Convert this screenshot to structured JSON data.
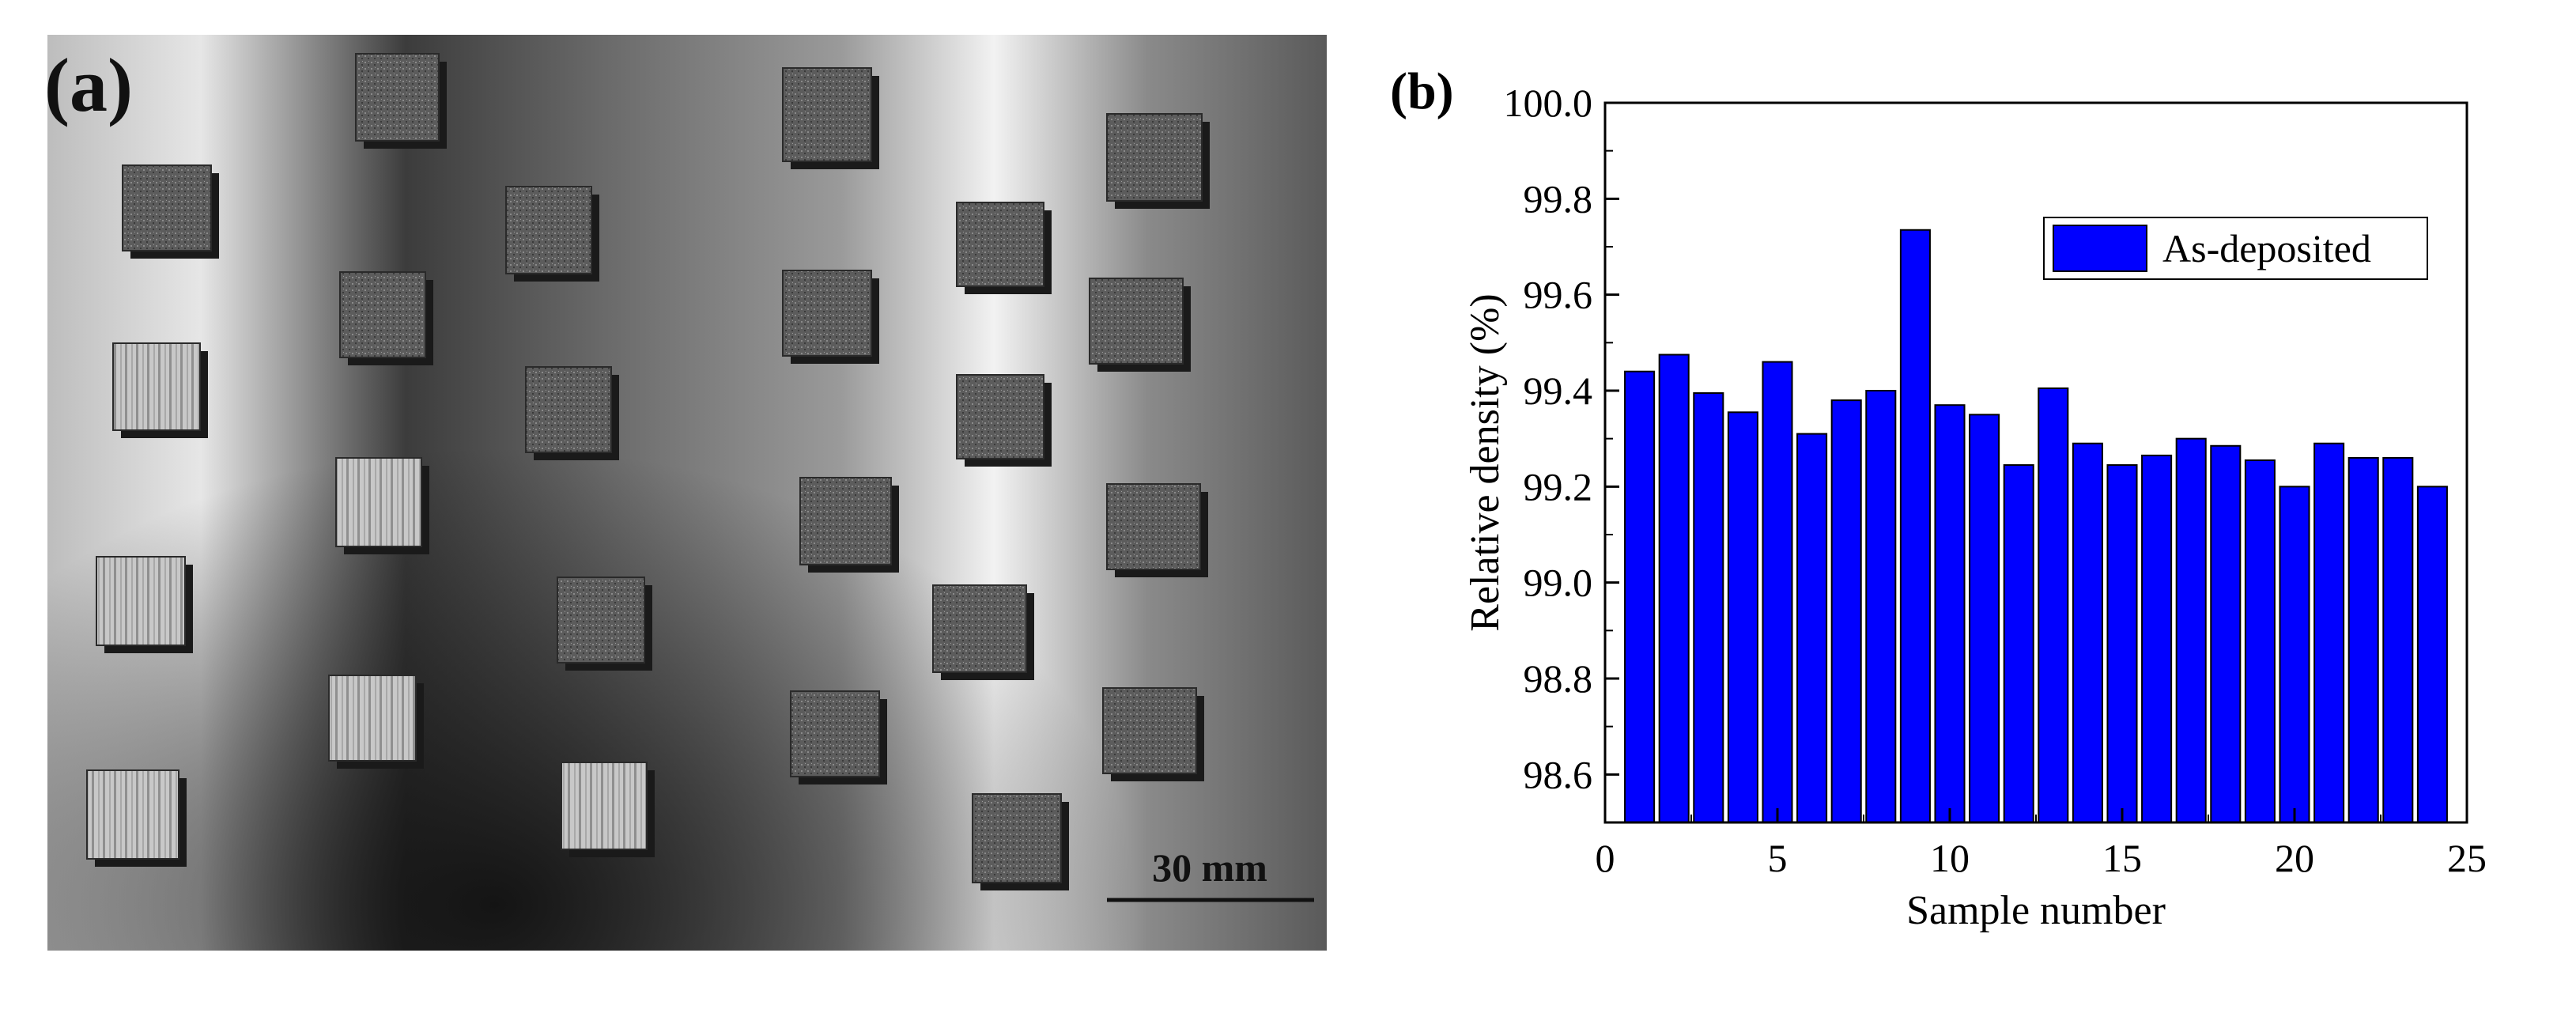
{
  "panel_a": {
    "label": "(a)",
    "scale_bar": "30 mm"
  },
  "panel_b": {
    "label": "(b)"
  },
  "colors": {
    "bar_fill": "#0000ff",
    "bar_edge": "#000000",
    "plate_light": "#d9d9d9",
    "plate_dark": "#3a3a3a"
  },
  "chart_data": {
    "type": "bar",
    "x": [
      1,
      2,
      3,
      4,
      5,
      6,
      7,
      8,
      9,
      10,
      11,
      12,
      13,
      14,
      15,
      16,
      17,
      18,
      19,
      20,
      21,
      22,
      23,
      24
    ],
    "values": [
      99.44,
      99.475,
      99.395,
      99.355,
      99.46,
      99.31,
      99.38,
      99.4,
      99.735,
      99.37,
      99.35,
      99.245,
      99.405,
      99.29,
      99.245,
      99.265,
      99.3,
      99.285,
      99.255,
      99.2,
      99.29,
      99.26,
      99.26,
      99.2
    ],
    "series": [
      {
        "name": "As-deposited"
      }
    ],
    "xlabel": "Sample number",
    "ylabel": "Relative density (%)",
    "xlim": [
      0,
      25
    ],
    "ylim": [
      98.5,
      100.0
    ],
    "xticks": [
      0,
      5,
      10,
      15,
      20,
      25
    ],
    "yticks": [
      98.6,
      98.8,
      99.0,
      99.2,
      99.4,
      99.6,
      99.8,
      100.0
    ],
    "ytick_labels": [
      "98.6",
      "98.8",
      "99.0",
      "99.2",
      "99.4",
      "99.6",
      "99.8",
      "100.0"
    ],
    "grid": false,
    "legend_position": "top-right"
  }
}
